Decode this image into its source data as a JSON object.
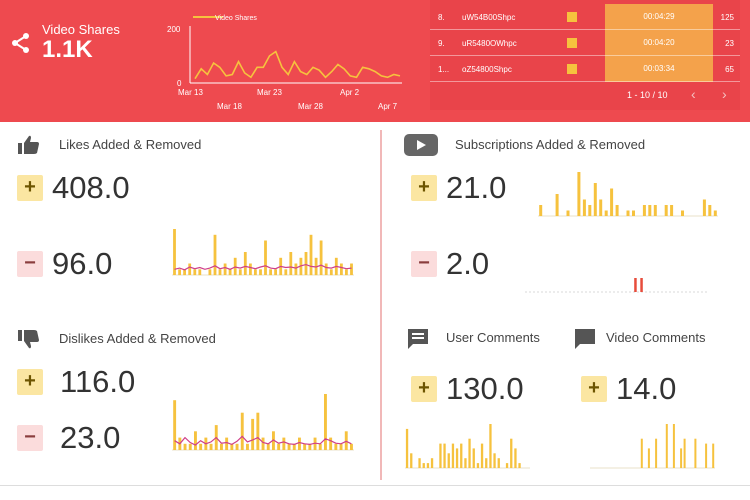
{
  "shares": {
    "label": "Video Shares",
    "value": "1.1K",
    "icon": "share-icon"
  },
  "line_chart": {
    "legend": "Video Shares",
    "y_ticks": [
      "200",
      "0"
    ],
    "x_ticks_top": [
      "Mar 13",
      "Mar 23",
      "Apr 2"
    ],
    "x_ticks_bottom": [
      "Mar 18",
      "Mar 28",
      "Apr 7"
    ],
    "ylim": [
      0,
      200
    ],
    "values": [
      15,
      50,
      30,
      70,
      55,
      25,
      30,
      75,
      35,
      20,
      55,
      55,
      95,
      110,
      55,
      30,
      75,
      40,
      30,
      55,
      45,
      20,
      40,
      65,
      50,
      25,
      20,
      55,
      50,
      40,
      25,
      20,
      30,
      25
    ]
  },
  "table": {
    "rows": [
      {
        "rank": "8.",
        "id": "uW54B00Shpc",
        "time": "00:04:29",
        "count": "125"
      },
      {
        "rank": "9.",
        "id": "uR5480OWhpc",
        "time": "00:04:20",
        "count": "23"
      },
      {
        "rank": "1...",
        "id": "oZ54800Shpc",
        "time": "00:03:34",
        "count": "65"
      }
    ],
    "pagination": "1 - 10 / 10",
    "prev": "‹",
    "next": "›"
  },
  "likes": {
    "title": "Likes Added & Removed",
    "added": "408.0",
    "removed": "96.0",
    "icon": "thumbs-up-icon",
    "bars": [
      8,
      1,
      1,
      2,
      1,
      1,
      0,
      1,
      7,
      1,
      2,
      1,
      3,
      1,
      4,
      2,
      1,
      1,
      6,
      1,
      1,
      3,
      1,
      4,
      2,
      3,
      4,
      7,
      3,
      6,
      2,
      1,
      3,
      2,
      1,
      2
    ],
    "trend": [
      1,
      1.2,
      0.9,
      1.4,
      1.1,
      1.3,
      1,
      1.2,
      1.6,
      1.1,
      1.3,
      1,
      1.4,
      1.2,
      1.5,
      1.3,
      1.1,
      1.4,
      1.6,
      1.2,
      1.1,
      1.5,
      1.3,
      1.4,
      1.2,
      1.6,
      1.8,
      1.5,
      1.4,
      1.7,
      1.3,
      1.2,
      1.5,
      1.3,
      1.1,
      1.2
    ],
    "trend_max": 8
  },
  "subs": {
    "title": "Subscriptions Added & Removed",
    "added": "21.0",
    "removed": "2.0",
    "icon": "video-play-icon",
    "bars": [
      2,
      0,
      0,
      4,
      0,
      1,
      0,
      8,
      3,
      2,
      6,
      3,
      1,
      5,
      2,
      0,
      1,
      1,
      0,
      2,
      2,
      2,
      0,
      2,
      2,
      0,
      1,
      0,
      0,
      0,
      3,
      2,
      1
    ],
    "neg": [
      0,
      0,
      0,
      0,
      0,
      0,
      0,
      0,
      0,
      0,
      0,
      0,
      0,
      0,
      0,
      0,
      0,
      0,
      0,
      0,
      0,
      0,
      0,
      0,
      0,
      0,
      0,
      0,
      0,
      0,
      0,
      0,
      0,
      0,
      0,
      0,
      1,
      0,
      1,
      0,
      0,
      0,
      0,
      0,
      0,
      0,
      0,
      0,
      0,
      0,
      0,
      0,
      0,
      0,
      0,
      0,
      0,
      0,
      0,
      0
    ]
  },
  "dislikes": {
    "title": "Dislikes Added & Removed",
    "added": "116.0",
    "removed": "23.0",
    "icon": "thumbs-down-icon",
    "bars": [
      8,
      2,
      1,
      1,
      3,
      1,
      2,
      1,
      4,
      1,
      2,
      1,
      1,
      6,
      1,
      5,
      6,
      2,
      1,
      3,
      1,
      2,
      1,
      1,
      2,
      1,
      1,
      2,
      1,
      9,
      2,
      1,
      1,
      3,
      1
    ],
    "trend": [
      1.5,
      1,
      2,
      1.2,
      0.8,
      1.5,
      1,
      1.3,
      2,
      1.1,
      1.2,
      0.9,
      1.4,
      2.2,
      1.3,
      1.6,
      2,
      1.2,
      1,
      1.6,
      1.1,
      1.3,
      1,
      0.9,
      1.2,
      1,
      0.9,
      1.1,
      1,
      1.8,
      1.5,
      1.1,
      1,
      1.4,
      1
    ],
    "trend_max": 9
  },
  "user_comments": {
    "title": "User Comments",
    "added": "130.0",
    "icon": "comment-icon",
    "bars": [
      8,
      3,
      0,
      2,
      1,
      1,
      2,
      0,
      5,
      5,
      3,
      5,
      4,
      5,
      2,
      6,
      4,
      1,
      5,
      2,
      9,
      3,
      2,
      0,
      1,
      6,
      4,
      1,
      0,
      0
    ]
  },
  "video_comments": {
    "title": "Video Comments",
    "added": "14.0",
    "icon": "comment-filled-icon",
    "bars": [
      0,
      0,
      0,
      0,
      0,
      0,
      0,
      0,
      0,
      0,
      0,
      0,
      0,
      0,
      6,
      0,
      4,
      0,
      6,
      0,
      0,
      9,
      0,
      9,
      0,
      4,
      6,
      0,
      0,
      6,
      0,
      0,
      5,
      0,
      5
    ]
  },
  "colors": {
    "banner": "#ee4a4f",
    "bar": "#f6c23e",
    "trend": "#cf3f88",
    "neg_bar": "#e74c3c",
    "time_cell": "#f4a24b"
  }
}
